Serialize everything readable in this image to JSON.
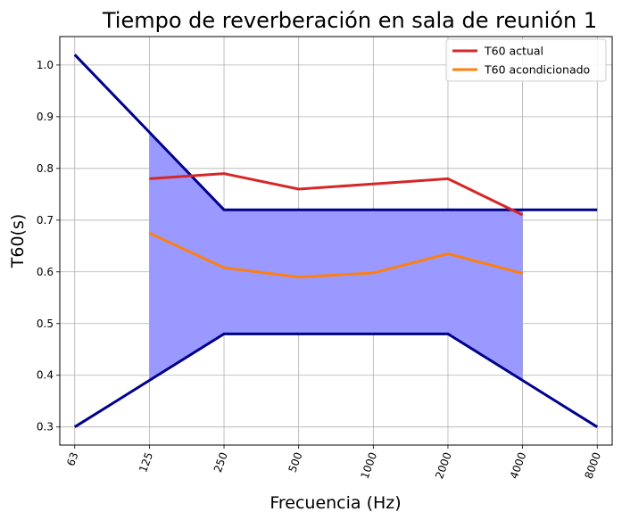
{
  "chart_data": {
    "type": "line",
    "title": "Tiempo de reverberación en sala de reunión 1",
    "xlabel": "Frecuencia (Hz)",
    "ylabel": "T60(s)",
    "categories": [
      "63",
      "125",
      "250",
      "500",
      "1000",
      "2000",
      "4000",
      "8000"
    ],
    "ylim": [
      0.265,
      1.055
    ],
    "yticks": [
      "0.3",
      "0.4",
      "0.5",
      "0.6",
      "0.7",
      "0.8",
      "0.9",
      "1.0"
    ],
    "grid": true,
    "legend_position": "top-right",
    "series": [
      {
        "name": "T60 actual",
        "color": "#d62728",
        "values": [
          null,
          0.78,
          0.79,
          0.76,
          0.77,
          0.78,
          0.71,
          null
        ]
      },
      {
        "name": "T60 acondicionado",
        "color": "#ff7f0e",
        "values": [
          null,
          0.675,
          0.608,
          0.59,
          0.598,
          0.635,
          0.597,
          null
        ]
      }
    ],
    "limit_lines": {
      "color": "#00008b",
      "upper": [
        1.02,
        0.87,
        0.72,
        0.72,
        0.72,
        0.72,
        0.72,
        0.72
      ],
      "lower": [
        0.3,
        0.39,
        0.48,
        0.48,
        0.48,
        0.48,
        0.39,
        0.3
      ]
    },
    "band": {
      "color": "#9999ff",
      "from_index": 1,
      "to_index": 6,
      "upper": [
        null,
        0.87,
        0.72,
        0.72,
        0.72,
        0.72,
        0.72,
        null
      ],
      "lower": [
        null,
        0.39,
        0.48,
        0.48,
        0.48,
        0.48,
        0.39,
        null
      ]
    }
  }
}
